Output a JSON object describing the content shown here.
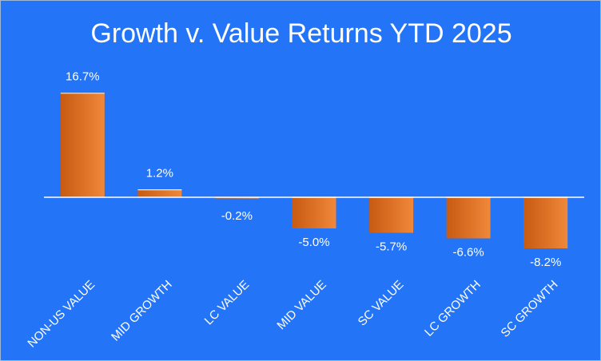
{
  "chart_data": {
    "type": "bar",
    "title": "Growth v. Value Returns YTD 2025",
    "xlabel": "",
    "ylabel": "",
    "categories": [
      "NON-US VALUE",
      "MID GROWTH",
      "LC VALUE",
      "MID VALUE",
      "SC VALUE",
      "LC GROWTH",
      "SC GROWTH"
    ],
    "values": [
      16.7,
      1.2,
      -0.2,
      -5.0,
      -5.7,
      -6.6,
      -8.2
    ],
    "data_labels": [
      "16.7%",
      "1.2%",
      "-0.2%",
      "-5.0%",
      "-5.7%",
      "-6.6%",
      "-8.2%"
    ],
    "ylim": [
      -10,
      17
    ],
    "grid": false,
    "legend": "none",
    "colors": {
      "background": "#2374f7",
      "bar_dark": "#c85a12",
      "bar_light": "#f0883a",
      "axis": "#ffffff",
      "text": "#ffffff"
    }
  }
}
